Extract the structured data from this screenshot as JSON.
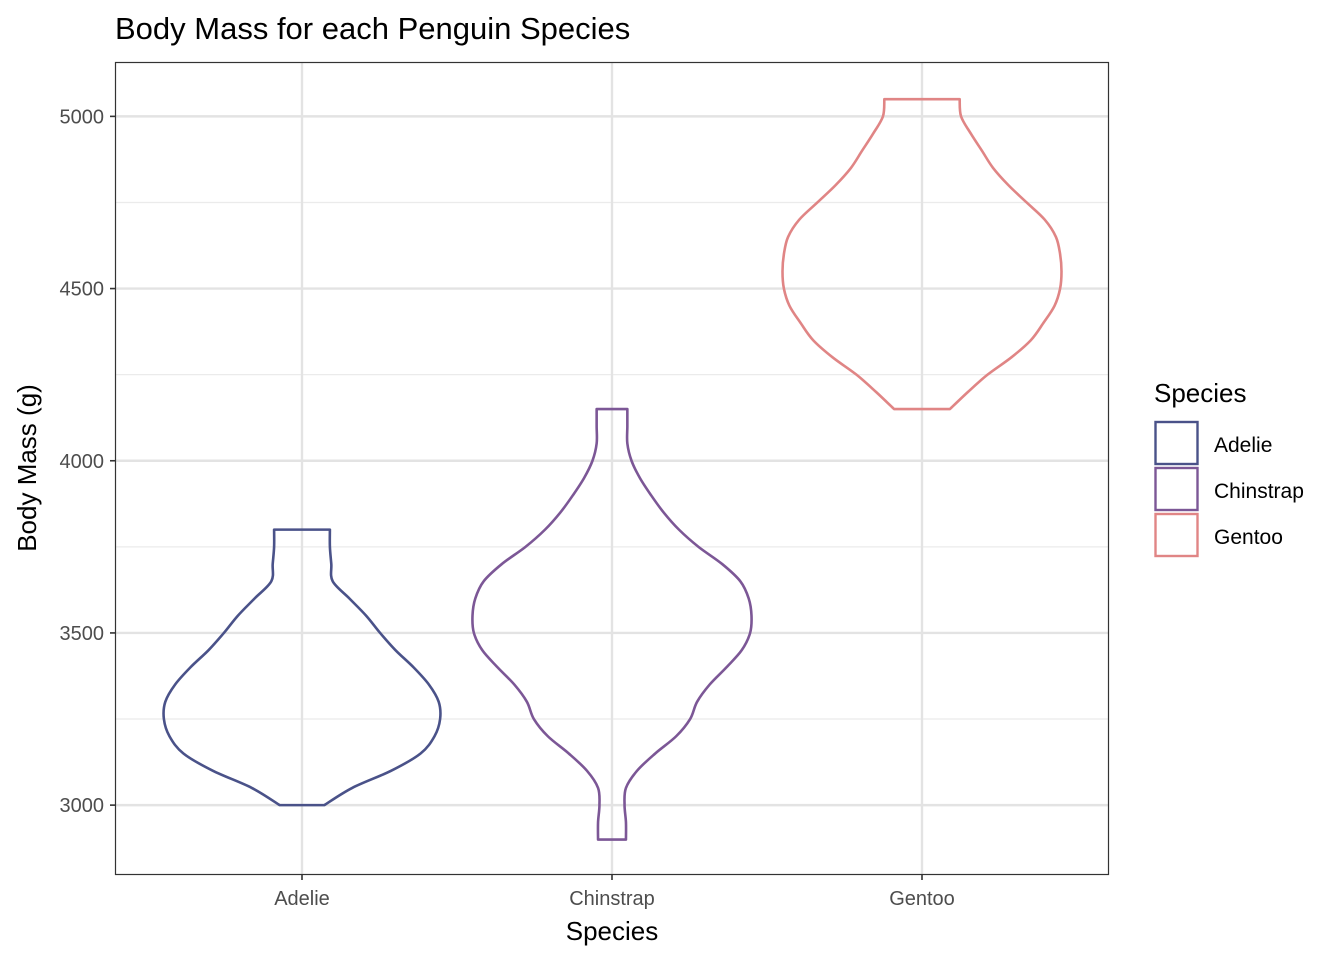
{
  "chart_data": {
    "type": "violin",
    "title": "Body Mass for each Penguin Species",
    "xlabel": "Species",
    "ylabel": "Body Mass (g)",
    "categories": [
      "Adelie",
      "Chinstrap",
      "Gentoo"
    ],
    "ylim": [
      2800,
      5155
    ],
    "yticks": [
      3000,
      3500,
      4000,
      4500,
      5000
    ],
    "grid": true,
    "legend": {
      "title": "Species",
      "position": "right",
      "entries": [
        "Adelie",
        "Chinstrap",
        "Gentoo"
      ]
    },
    "colors": {
      "Adelie": "#4a5289",
      "Chinstrap": "#7c5796",
      "Gentoo": "#e08585"
    },
    "series": [
      {
        "name": "Adelie",
        "min": 3000,
        "max": 3800,
        "density_profile": [
          [
            3000,
            0.16
          ],
          [
            3050,
            0.36
          ],
          [
            3100,
            0.64
          ],
          [
            3150,
            0.85
          ],
          [
            3200,
            0.95
          ],
          [
            3250,
            0.99
          ],
          [
            3300,
            0.98
          ],
          [
            3350,
            0.91
          ],
          [
            3400,
            0.8
          ],
          [
            3450,
            0.67
          ],
          [
            3500,
            0.56
          ],
          [
            3550,
            0.46
          ],
          [
            3600,
            0.34
          ],
          [
            3650,
            0.22
          ],
          [
            3700,
            0.21
          ],
          [
            3750,
            0.2
          ],
          [
            3800,
            0.2
          ]
        ]
      },
      {
        "name": "Chinstrap",
        "min": 2900,
        "max": 4150,
        "density_profile": [
          [
            2900,
            0.1
          ],
          [
            2950,
            0.1
          ],
          [
            3000,
            0.09
          ],
          [
            3050,
            0.1
          ],
          [
            3100,
            0.18
          ],
          [
            3150,
            0.31
          ],
          [
            3200,
            0.46
          ],
          [
            3250,
            0.56
          ],
          [
            3300,
            0.61
          ],
          [
            3350,
            0.7
          ],
          [
            3400,
            0.82
          ],
          [
            3450,
            0.93
          ],
          [
            3500,
            0.99
          ],
          [
            3550,
            1.0
          ],
          [
            3600,
            0.98
          ],
          [
            3650,
            0.92
          ],
          [
            3700,
            0.79
          ],
          [
            3750,
            0.62
          ],
          [
            3800,
            0.48
          ],
          [
            3850,
            0.37
          ],
          [
            3900,
            0.28
          ],
          [
            3950,
            0.2
          ],
          [
            4000,
            0.14
          ],
          [
            4050,
            0.11
          ],
          [
            4100,
            0.11
          ],
          [
            4150,
            0.11
          ]
        ]
      },
      {
        "name": "Gentoo",
        "min": 4150,
        "max": 5050,
        "density_profile": [
          [
            4150,
            0.2
          ],
          [
            4200,
            0.33
          ],
          [
            4250,
            0.47
          ],
          [
            4300,
            0.64
          ],
          [
            4350,
            0.78
          ],
          [
            4400,
            0.87
          ],
          [
            4450,
            0.95
          ],
          [
            4500,
            0.99
          ],
          [
            4550,
            1.0
          ],
          [
            4600,
            0.99
          ],
          [
            4650,
            0.96
          ],
          [
            4700,
            0.88
          ],
          [
            4750,
            0.75
          ],
          [
            4800,
            0.62
          ],
          [
            4850,
            0.51
          ],
          [
            4900,
            0.43
          ],
          [
            4950,
            0.35
          ],
          [
            5000,
            0.28
          ],
          [
            5050,
            0.27
          ]
        ]
      }
    ]
  }
}
